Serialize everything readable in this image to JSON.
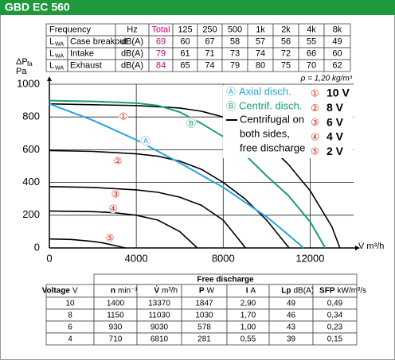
{
  "header": {
    "title": "GBD EC 560"
  },
  "sound_table": {
    "header": [
      "Frequency",
      "Hz",
      "Total",
      "125",
      "250",
      "500",
      "1k",
      "2k",
      "4k",
      "8k"
    ],
    "rows": [
      {
        "symbol": "L",
        "symbol_sub": "WA",
        "label": "Case breakout",
        "unit": "dB(A)",
        "total": 69,
        "values": [
          60,
          67,
          58,
          57,
          56,
          55,
          49
        ]
      },
      {
        "symbol": "L",
        "symbol_sub": "WA",
        "label": "Intake",
        "unit": "dB(A)",
        "total": 79,
        "values": [
          61,
          71,
          73,
          74,
          72,
          66,
          60
        ]
      },
      {
        "symbol": "L",
        "symbol_sub": "WA",
        "label": "Exhaust",
        "unit": "dB(A)",
        "total": 84,
        "values": [
          65,
          74,
          79,
          80,
          75,
          70,
          62
        ]
      }
    ]
  },
  "chart_data": {
    "type": "line",
    "y_label": "ΔP",
    "y_label_sub": "fa",
    "y_unit": "Pa",
    "x_label": "V̇ m³/h",
    "annotation": "ρ = 1,20 kg/m³",
    "xlim": [
      0,
      14000
    ],
    "ylim": [
      0,
      1000
    ],
    "xticks": [
      0,
      4000,
      8000,
      12000
    ],
    "yticks": [
      0,
      200,
      400,
      600,
      800,
      1000
    ],
    "grid": true,
    "marker_color": "#e2231a",
    "legend_note": [
      "Centrifugal on",
      "both sides,",
      "free discharge"
    ],
    "series": [
      {
        "name": "10 V",
        "marker": "①",
        "color": "#000000",
        "x": [
          0,
          2000,
          4000,
          6000,
          7000,
          8000,
          9000,
          10000,
          11000,
          12000,
          13000,
          13370
        ],
        "values": [
          880,
          875,
          870,
          855,
          835,
          800,
          740,
          640,
          510,
          350,
          130,
          0
        ]
      },
      {
        "name": "8 V",
        "marker": "②",
        "color": "#000000",
        "x": [
          0,
          2000,
          4000,
          5000,
          6000,
          7000,
          8000,
          9000,
          10000,
          11030
        ],
        "values": [
          595,
          590,
          575,
          560,
          530,
          480,
          400,
          300,
          170,
          0
        ]
      },
      {
        "name": "6 V",
        "marker": "③",
        "color": "#000000",
        "x": [
          0,
          2000,
          4000,
          5000,
          6000,
          7000,
          8000,
          9030
        ],
        "values": [
          375,
          370,
          355,
          340,
          310,
          260,
          170,
          0
        ]
      },
      {
        "name": "4 V",
        "marker": "④",
        "color": "#000000",
        "x": [
          0,
          2000,
          3000,
          4000,
          5000,
          6000,
          6810
        ],
        "values": [
          225,
          222,
          215,
          200,
          170,
          100,
          0
        ]
      },
      {
        "name": "2 V",
        "marker": "⑤",
        "color": "#000000",
        "x": [
          0,
          1000,
          2000,
          2500,
          3000,
          3500
        ],
        "values": [
          55,
          52,
          40,
          30,
          15,
          0
        ]
      },
      {
        "name": "Axial disch.",
        "marker": "Ⓐ",
        "color": "#29a3e0",
        "x": [
          0,
          2000,
          4000,
          6000,
          8000,
          10000,
          11000,
          11700
        ],
        "values": [
          880,
          780,
          660,
          520,
          370,
          190,
          80,
          0
        ]
      },
      {
        "name": "Centrif. disch.",
        "marker": "Ⓑ",
        "color": "#1aa06e",
        "x": [
          0,
          2000,
          4000,
          5000,
          6000,
          7000,
          8000,
          9000,
          10000,
          11000,
          12000,
          12700
        ],
        "values": [
          900,
          895,
          885,
          870,
          830,
          760,
          680,
          570,
          440,
          320,
          160,
          0
        ]
      }
    ]
  },
  "performance_table": {
    "title": "Free discharge",
    "columns": [
      {
        "name": "Voltage",
        "unit": "V"
      },
      {
        "name": "n",
        "unit": "min⁻¹"
      },
      {
        "name": "V̇",
        "unit": "m³/h"
      },
      {
        "name": "P",
        "unit": "W"
      },
      {
        "name": "I",
        "unit": "A"
      },
      {
        "name": "Lp",
        "unit": "dB(A)"
      },
      {
        "name": "SFP",
        "unit": "kW/m³/s"
      }
    ],
    "rows": [
      [
        "10",
        "1400",
        "13370",
        "1847",
        "2,90",
        "49",
        "0,49"
      ],
      [
        "8",
        "1150",
        "11030",
        "1030",
        "1,70",
        "46",
        "0,34"
      ],
      [
        "6",
        "930",
        "9030",
        "578",
        "1,00",
        "43",
        "0,23"
      ],
      [
        "4",
        "710",
        "6810",
        "281",
        "0,55",
        "39",
        "0,15"
      ]
    ]
  }
}
